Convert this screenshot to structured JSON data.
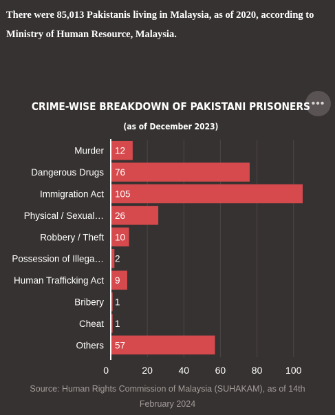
{
  "intro_text": "There were 85,013 Pakistanis living in Malaysia, as of 2020, according to Ministry of Human Resource, Malaysia.",
  "menu_icon": "ellipsis-icon",
  "menu_glyph": "•••",
  "colors": {
    "background": "#363231",
    "bar": "#d64a4e",
    "text": "#ffffff",
    "source": "#a39c99"
  },
  "chart_data": {
    "type": "bar",
    "orientation": "horizontal",
    "title": "CRIME-WISE BREAKDOWN OF PAKISTANI PRISONERS",
    "subtitle": "(as of December 2023)",
    "categories": [
      "Murder",
      "Dangerous Drugs",
      "Immigration Act",
      "Physical / Sexual…",
      "Robbery / Theft",
      "Possession of Illega…",
      "Human Trafficking Act",
      "Bribery",
      "Cheat",
      "Others"
    ],
    "values": [
      12,
      76,
      105,
      26,
      10,
      2,
      9,
      1,
      1,
      57
    ],
    "xlim": [
      0,
      108
    ],
    "xticks": [
      0,
      20,
      40,
      60,
      80,
      100
    ],
    "grid": true,
    "legend": "none",
    "data_labels": true
  },
  "source_text": "Source: Human Rights Commission of Malaysia (SUHAKAM), as of 14th February 2024"
}
